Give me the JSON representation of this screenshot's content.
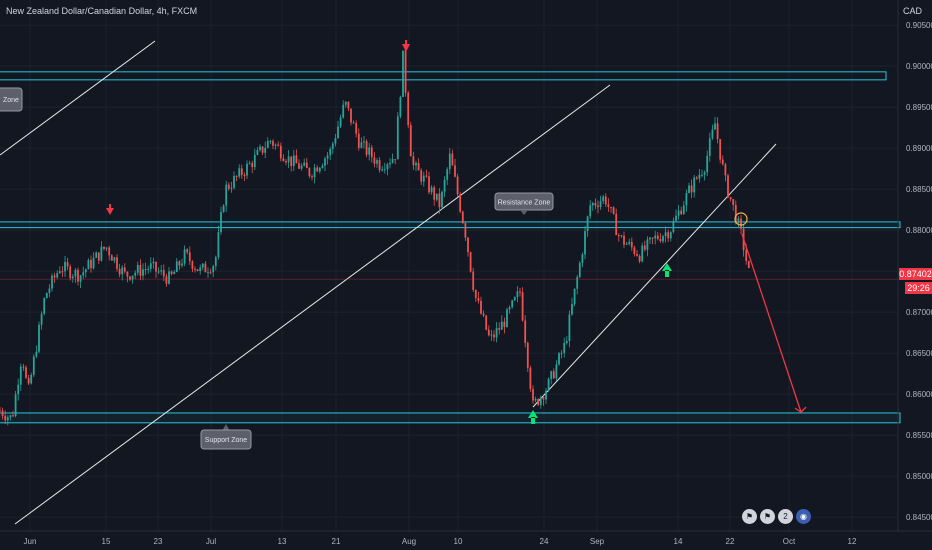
{
  "header": {
    "title": "New Zealand Dollar/Canadian Dollar, 4h, FXCM",
    "currency": "CAD"
  },
  "price_tag": {
    "value": "0.87402",
    "countdown": "29:26"
  },
  "annotations": {
    "resistance_label": "Resistance Zone",
    "support_label": "Support Zone",
    "partial_label": "Zone"
  },
  "event_icons": [
    "flag-icon",
    "flag-icon",
    "2",
    "globe-icon"
  ],
  "colors": {
    "background": "#131722",
    "zone": "#26c6da",
    "up": "#26a69a",
    "down": "#ef5350",
    "arrow_down": "#f23645",
    "arrow_up": "#00e676",
    "trendline": "#e8e8e8"
  },
  "chart_data": {
    "type": "candlestick",
    "ylim": [
      0.8435,
      0.9068
    ],
    "yticks": [
      "0.90500",
      "0.90000",
      "0.89500",
      "0.89000",
      "0.88500",
      "0.88000",
      "0.87500",
      "0.87000",
      "0.86500",
      "0.86000",
      "0.85500",
      "0.85000",
      "0.84500"
    ],
    "xticks": [
      "Jun",
      "15",
      "23",
      "Jul",
      "13",
      "21",
      "Aug",
      "10",
      "24",
      "Sep",
      "14",
      "22",
      "Oct",
      "12"
    ],
    "close_path": [
      {
        "t": "Jun",
        "v": 0.858
      },
      {
        "t": "Jun 3",
        "v": 0.8565
      },
      {
        "t": "Jun 5",
        "v": 0.86
      },
      {
        "t": "Jun 8",
        "v": 0.876
      },
      {
        "t": "Jun 12",
        "v": 0.8745
      },
      {
        "t": "15",
        "v": 0.878
      },
      {
        "t": "Jun 18",
        "v": 0.8745
      },
      {
        "t": "23",
        "v": 0.876
      },
      {
        "t": "Jun 27",
        "v": 0.8755
      },
      {
        "t": "Jul",
        "v": 0.876
      },
      {
        "t": "Jul 6",
        "v": 0.888
      },
      {
        "t": "Jul 10",
        "v": 0.8905
      },
      {
        "t": "13",
        "v": 0.889
      },
      {
        "t": "Jul 17",
        "v": 0.886
      },
      {
        "t": "21",
        "v": 0.892
      },
      {
        "t": "Jul 25",
        "v": 0.8885
      },
      {
        "t": "Jul 29",
        "v": 0.8955
      },
      {
        "t": "Jul 30",
        "v": 0.9005
      },
      {
        "t": "Aug",
        "v": 0.888
      },
      {
        "t": "Aug 5",
        "v": 0.889
      },
      {
        "t": "10",
        "v": 0.8805
      },
      {
        "t": "Aug 14",
        "v": 0.868
      },
      {
        "t": "Aug 18",
        "v": 0.866
      },
      {
        "t": "Aug 20",
        "v": 0.8725
      },
      {
        "t": "24",
        "v": 0.858
      },
      {
        "t": "Aug 27",
        "v": 0.8625
      },
      {
        "t": "Sep",
        "v": 0.876
      },
      {
        "t": "Sep 4",
        "v": 0.885
      },
      {
        "t": "Sep 8",
        "v": 0.879
      },
      {
        "t": "14",
        "v": 0.88
      },
      {
        "t": "Sep 18",
        "v": 0.888
      },
      {
        "t": "22",
        "v": 0.893
      },
      {
        "t": "Sep 24",
        "v": 0.8805
      },
      {
        "t": "Sep 26",
        "v": 0.874
      }
    ],
    "zones": [
      {
        "type": "resistance",
        "top": 0.881,
        "bottom": 0.8803
      },
      {
        "type": "support",
        "top": 0.8577,
        "bottom": 0.8565
      },
      {
        "type": "top",
        "top": 0.8993,
        "bottom": 0.8985
      }
    ],
    "current_price": 0.87402,
    "projection": {
      "from_date": "Sep 24",
      "from_price": 0.8795,
      "to_date": "Oct",
      "to_price": 0.8578
    }
  }
}
